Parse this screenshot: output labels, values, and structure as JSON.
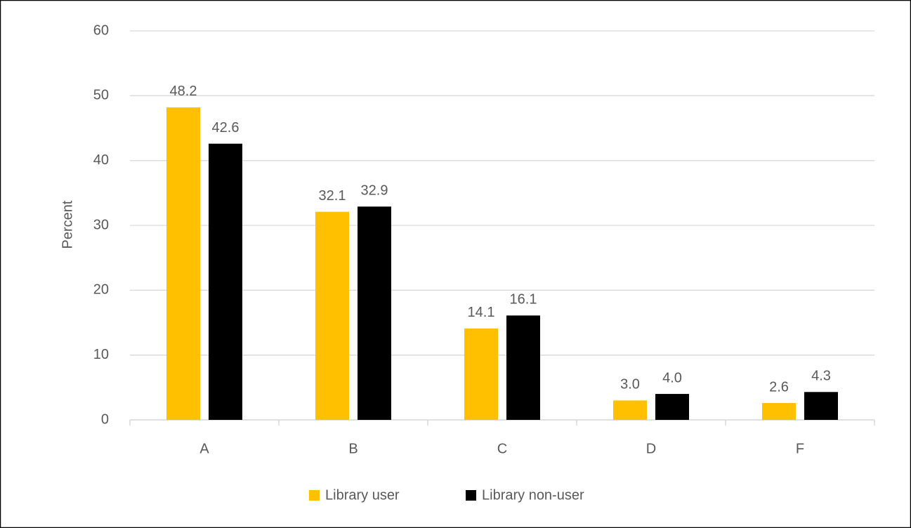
{
  "chart_data": {
    "type": "bar",
    "categories": [
      "A",
      "B",
      "C",
      "D",
      "F"
    ],
    "series": [
      {
        "name": "Library user",
        "color": "#ffc000",
        "values": [
          48.2,
          32.1,
          14.1,
          3.0,
          2.6
        ],
        "value_labels": [
          "48.2",
          "32.1",
          "14.1",
          "3.0",
          "2.6"
        ]
      },
      {
        "name": "Library non-user",
        "color": "#000000",
        "values": [
          42.6,
          32.9,
          16.1,
          4.0,
          4.3
        ],
        "value_labels": [
          "42.6",
          "32.9",
          "16.1",
          "4.0",
          "4.3"
        ]
      }
    ],
    "y_label": "Percent",
    "ylim": [
      0,
      60
    ],
    "yticks": [
      0,
      10,
      20,
      30,
      40,
      50,
      60
    ],
    "grid": true,
    "legend": "bottom"
  }
}
